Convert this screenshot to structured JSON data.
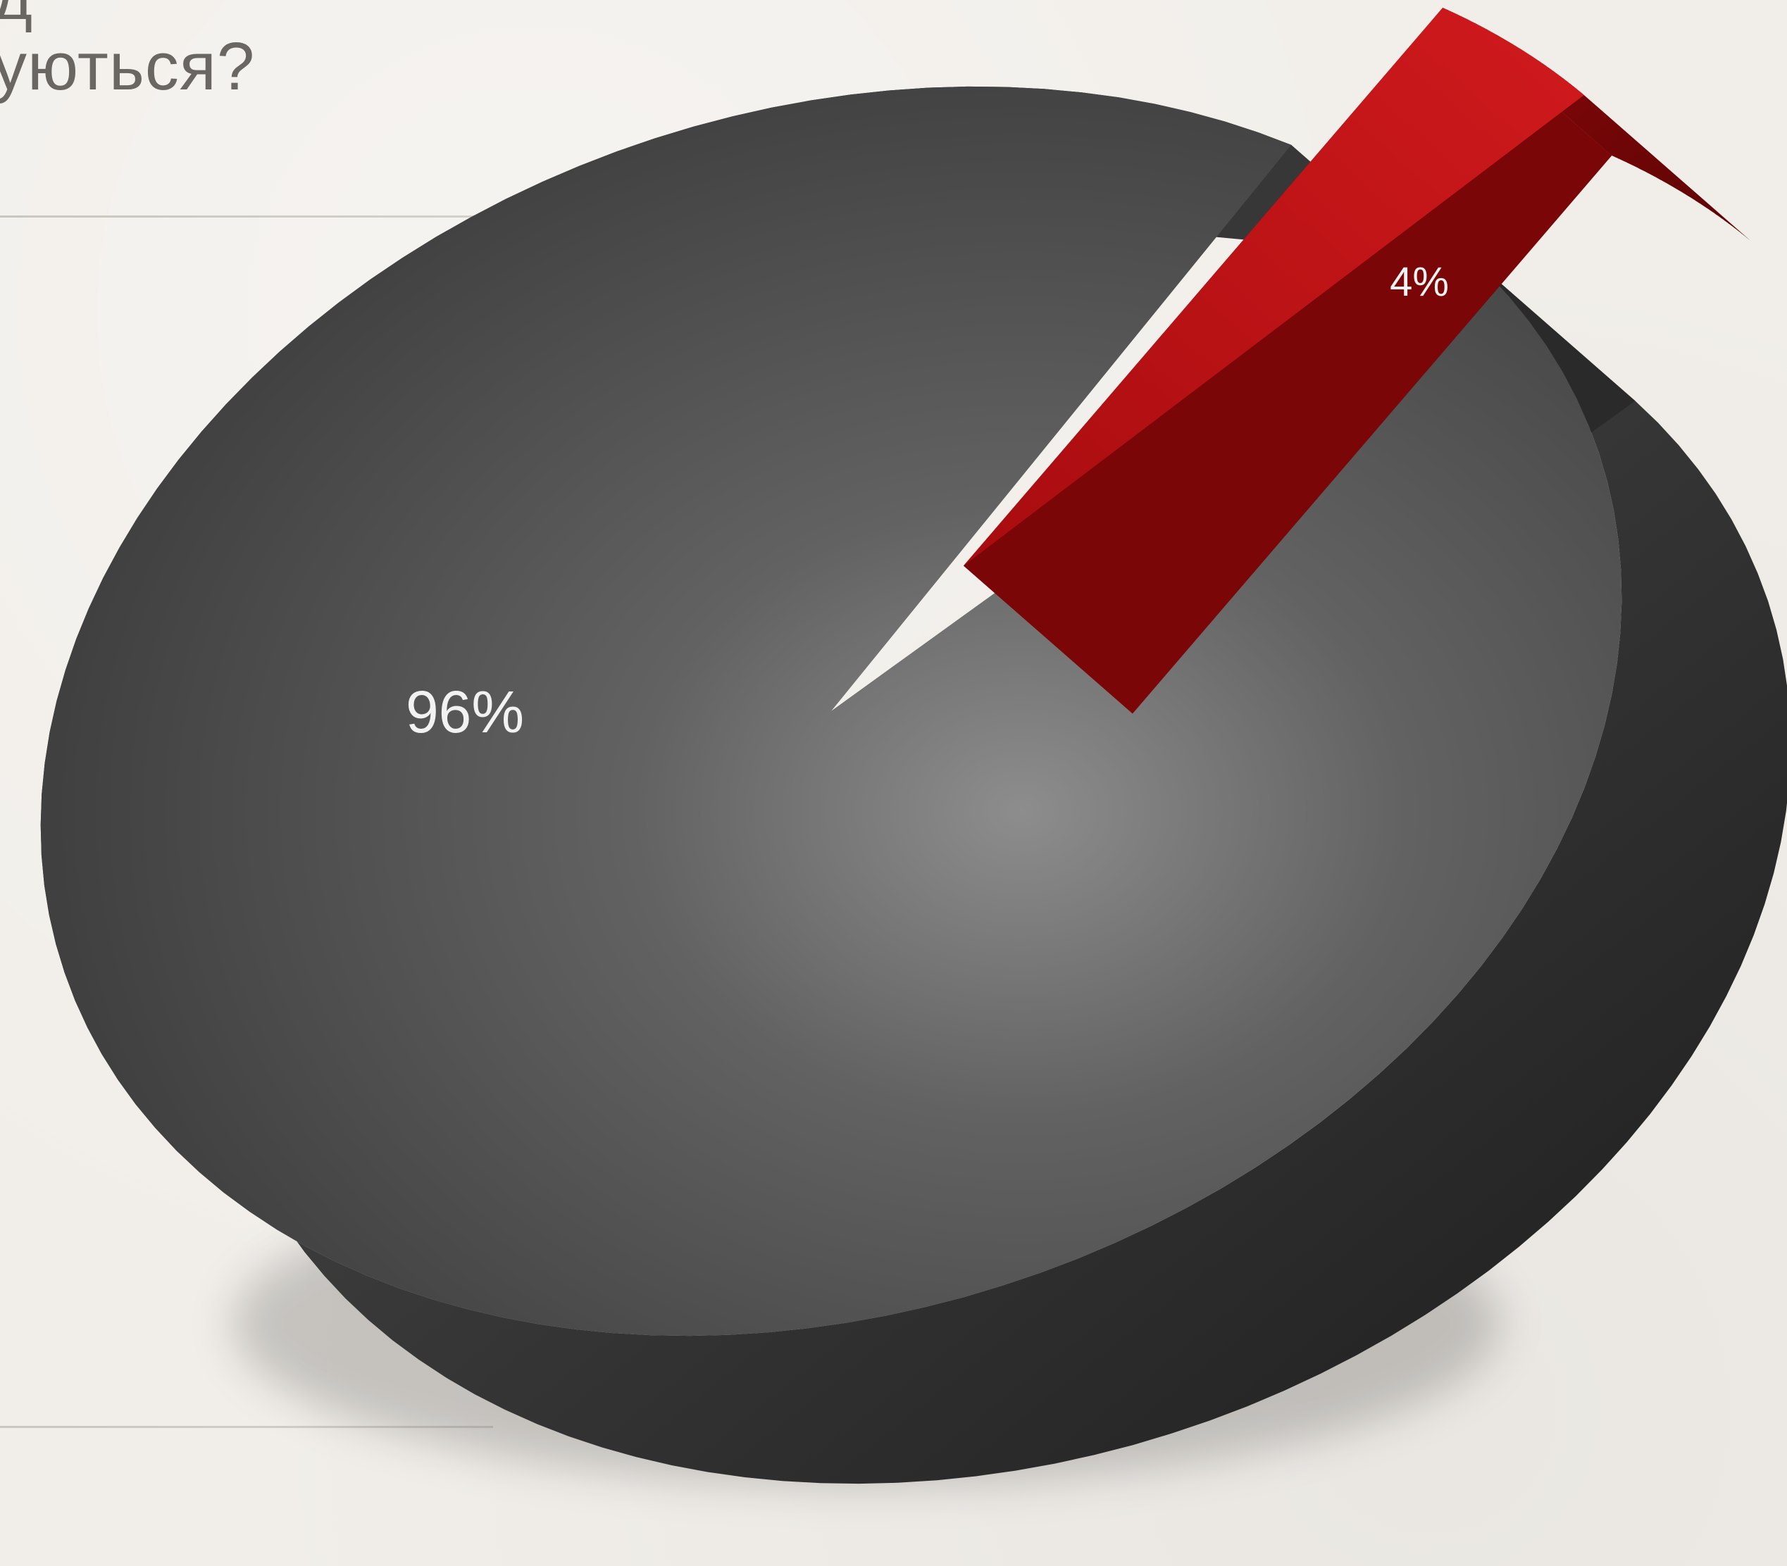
{
  "page": {
    "title_fragment": "уються?",
    "title_fragment_top": "д"
  },
  "colors": {
    "background": "#f1eee9",
    "dark_slice": "#4a4a4a",
    "red_slice": "#c41417",
    "label": "#f2f2f2"
  },
  "chart_data": {
    "type": "pie",
    "style": "3d-exploded",
    "slices": [
      {
        "label": "96%",
        "value": 96,
        "color": "#4a4a4a"
      },
      {
        "label": "4%",
        "value": 4,
        "color": "#c41417"
      }
    ],
    "title": "",
    "legend": "none"
  }
}
